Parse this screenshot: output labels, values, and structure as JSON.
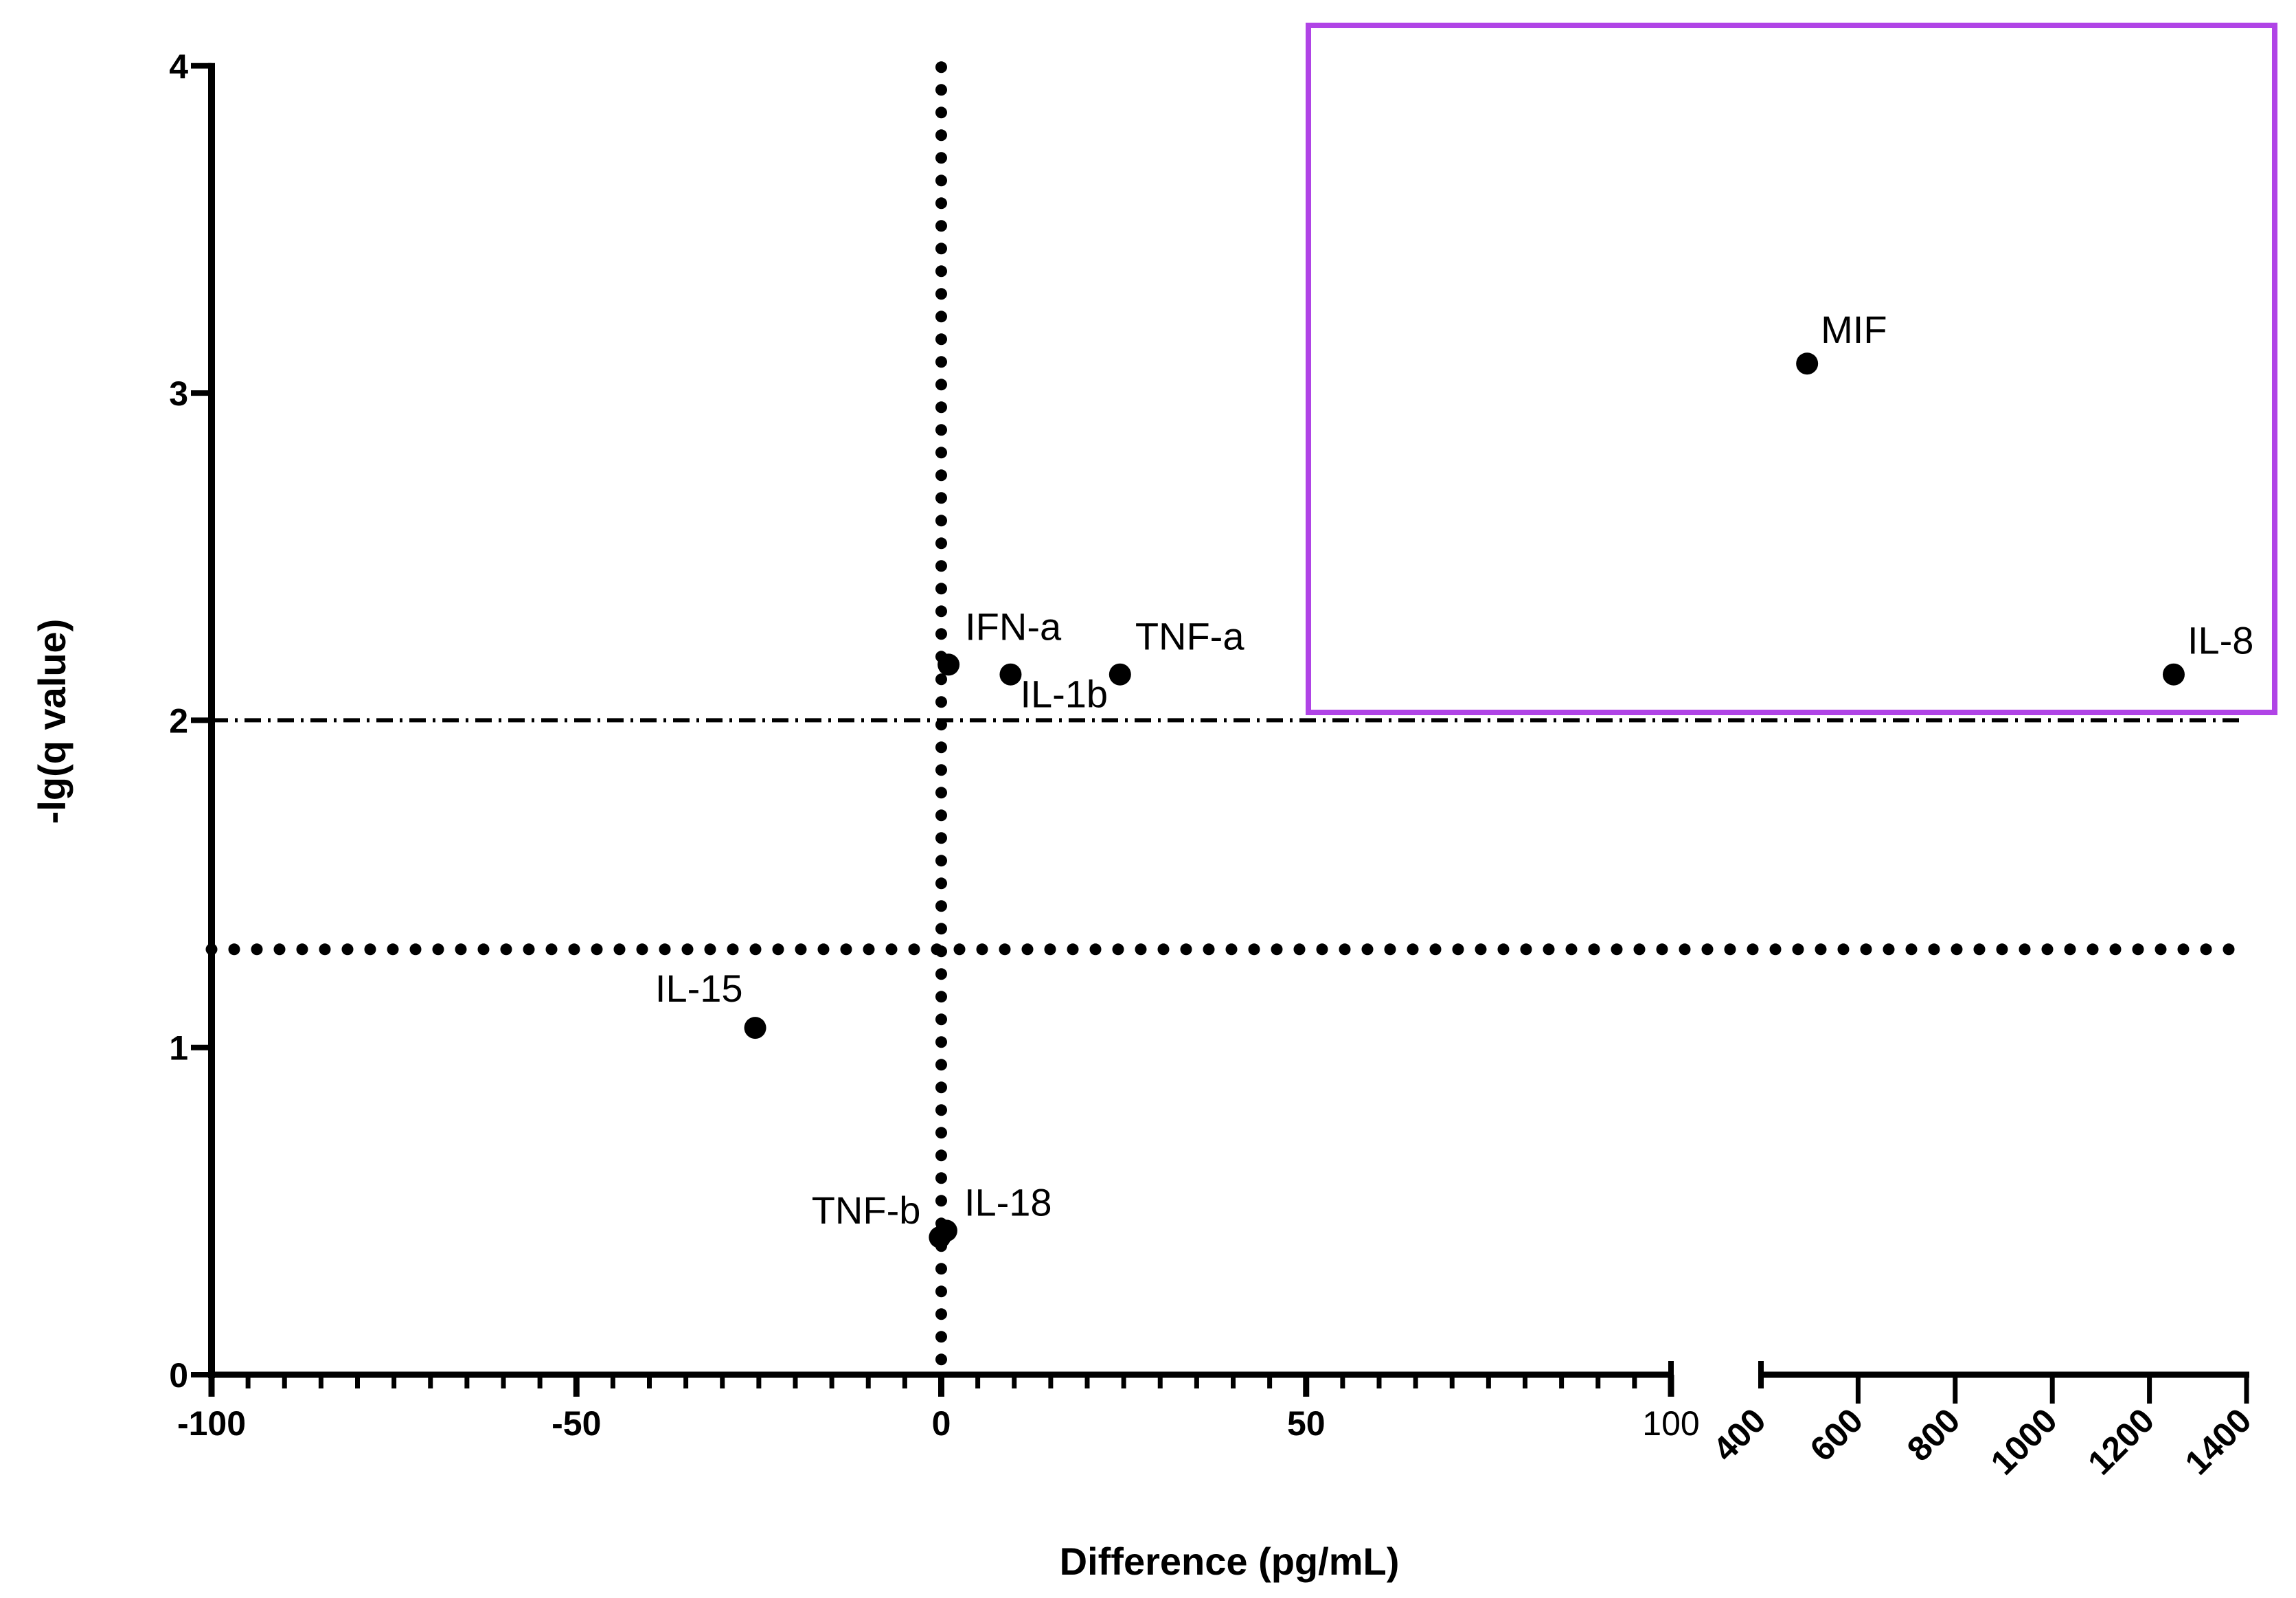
{
  "chart_data": {
    "type": "scatter",
    "title": "",
    "xlabel": "Difference (pg/mL)",
    "ylabel": "-lg(q value)",
    "x_axis": {
      "broken": true,
      "segments": [
        {
          "range": [
            -100,
            100
          ],
          "ticks": [
            -100,
            -50,
            0,
            50,
            100
          ],
          "tick_labels": [
            "-100",
            "-50",
            "0",
            "50",
            "100"
          ],
          "minor_tick_step": 5,
          "label_rotation": 0
        },
        {
          "range": [
            400,
            1400
          ],
          "ticks": [
            400,
            600,
            800,
            1000,
            1200,
            1400
          ],
          "tick_labels": [
            "400",
            "600",
            "800",
            "1000",
            "1200",
            "1400"
          ],
          "label_rotation": -45
        }
      ]
    },
    "y_axis": {
      "range": [
        0,
        4
      ],
      "ticks": [
        0,
        1,
        2,
        3,
        4
      ],
      "tick_labels": [
        "0",
        "1",
        "2",
        "3",
        "4"
      ]
    },
    "grid": false,
    "legend": null,
    "reference_lines": [
      {
        "orientation": "vertical",
        "x": 0,
        "style": "dotted",
        "description": "zero difference"
      },
      {
        "orientation": "horizontal",
        "y": 1.3,
        "style": "dotted",
        "description": "q = 0.05 threshold"
      },
      {
        "orientation": "horizontal",
        "y": 2.0,
        "style": "dash-dot",
        "description": "q = 0.01 threshold"
      }
    ],
    "highlight_box": {
      "color": "#B044E6",
      "x_range_segment": "right",
      "y_range": [
        2.02,
        4.2
      ],
      "description": "highlighted region containing MIF and IL-8"
    },
    "points": [
      {
        "label": "IFN-a",
        "x": 1,
        "y": 2.17
      },
      {
        "label": "IL-1b",
        "x": 9.5,
        "y": 2.14
      },
      {
        "label": "TNF-a",
        "x": 24.5,
        "y": 2.14
      },
      {
        "label": "IL-15",
        "x": -25.5,
        "y": 1.06
      },
      {
        "label": "TNF-b",
        "x": -0.2,
        "y": 0.42
      },
      {
        "label": "IL-18",
        "x": 0.7,
        "y": 0.44
      },
      {
        "label": "MIF",
        "x": 495,
        "y": 3.09
      },
      {
        "label": "IL-8",
        "x": 1250,
        "y": 2.14
      }
    ]
  },
  "labels": {
    "x_title": "Difference (pg/mL)",
    "y_title": "-lg(q value)"
  }
}
